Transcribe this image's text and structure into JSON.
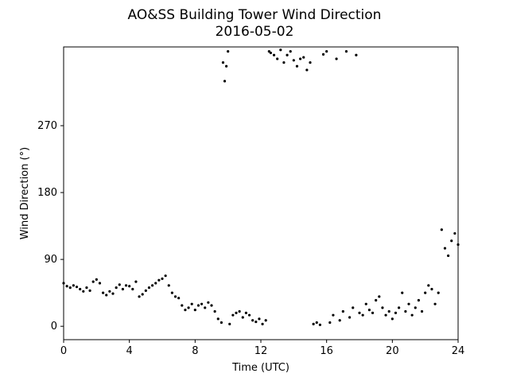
{
  "chart_data": {
    "type": "scatter",
    "title": "AO&SS Building Tower Wind Direction",
    "subtitle": "2016-05-02",
    "x_label": "Time (UTC)",
    "y_label": "Wind Direction (°)",
    "color": "#000000",
    "xlim": [
      0,
      24
    ],
    "xticks": [
      0,
      4,
      8,
      12,
      16,
      20,
      24
    ],
    "ylim": [
      -18,
      376
    ],
    "yticks": [
      0,
      90,
      180,
      270
    ],
    "x": [
      0,
      0.2,
      0.4,
      0.6,
      0.8,
      1.0,
      1.2,
      1.4,
      1.6,
      1.8,
      2.0,
      2.2,
      2.4,
      2.6,
      2.8,
      3.0,
      3.2,
      3.4,
      3.6,
      3.8,
      4.0,
      4.2,
      4.4,
      4.6,
      4.8,
      5.0,
      5.2,
      5.4,
      5.6,
      5.8,
      6.0,
      6.2,
      6.4,
      6.6,
      6.8,
      7.0,
      7.2,
      7.4,
      7.6,
      7.8,
      8.0,
      8.2,
      8.4,
      8.6,
      8.8,
      9.0,
      9.2,
      9.4,
      9.6,
      9.7,
      9.8,
      9.9,
      10.0,
      10.1,
      10.3,
      10.5,
      10.7,
      10.9,
      11.1,
      11.3,
      11.5,
      11.7,
      11.9,
      12.1,
      12.3,
      12.5,
      12.6,
      12.8,
      13.0,
      13.2,
      13.4,
      13.6,
      13.8,
      14.0,
      14.2,
      14.4,
      14.6,
      14.8,
      15.0,
      15.2,
      15.4,
      15.6,
      15.8,
      16.0,
      16.2,
      16.4,
      16.6,
      16.8,
      17.0,
      17.2,
      17.4,
      17.6,
      17.8,
      18.0,
      18.2,
      18.4,
      18.6,
      18.8,
      19.0,
      19.2,
      19.4,
      19.6,
      19.8,
      20.0,
      20.2,
      20.4,
      20.6,
      20.8,
      21.0,
      21.2,
      21.4,
      21.6,
      21.8,
      22.0,
      22.2,
      22.4,
      22.6,
      22.8,
      23.0,
      23.2,
      23.4,
      23.6,
      23.8,
      24.0
    ],
    "values": [
      58,
      54,
      52,
      55,
      53,
      50,
      47,
      52,
      48,
      60,
      63,
      58,
      45,
      42,
      47,
      44,
      52,
      56,
      50,
      55,
      54,
      50,
      60,
      40,
      43,
      48,
      52,
      55,
      58,
      62,
      64,
      68,
      55,
      45,
      40,
      38,
      28,
      22,
      25,
      30,
      22,
      28,
      30,
      25,
      32,
      28,
      20,
      10,
      5,
      355,
      330,
      350,
      370,
      3,
      15,
      18,
      20,
      12,
      18,
      15,
      8,
      6,
      10,
      3,
      8,
      370,
      368,
      365,
      360,
      372,
      355,
      365,
      370,
      358,
      350,
      360,
      362,
      345,
      355,
      3,
      5,
      2,
      366,
      370,
      5,
      15,
      360,
      8,
      20,
      370,
      12,
      25,
      365,
      18,
      15,
      30,
      22,
      18,
      35,
      40,
      25,
      15,
      20,
      10,
      18,
      25,
      45,
      20,
      30,
      15,
      25,
      35,
      20,
      45,
      55,
      50,
      30,
      45,
      130,
      105,
      95,
      115,
      125,
      110
    ]
  }
}
